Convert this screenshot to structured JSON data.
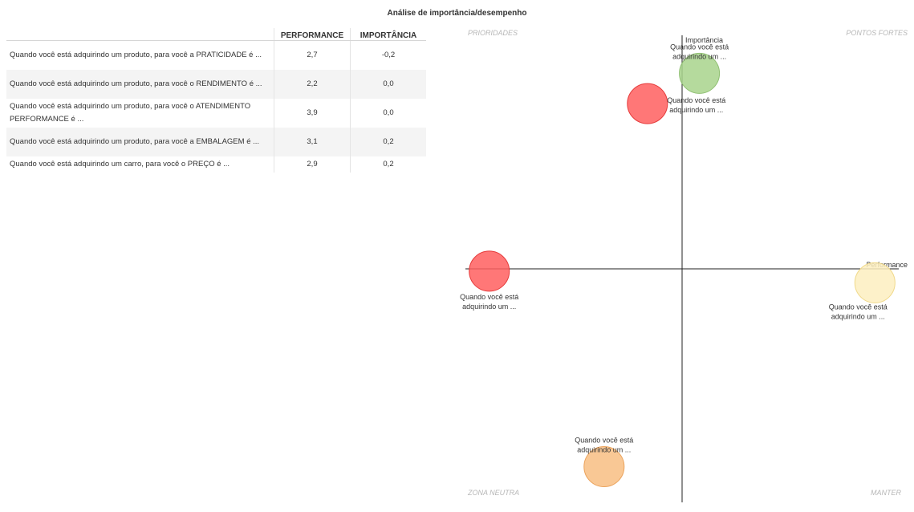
{
  "title": "Análise de importância/desempenho",
  "table": {
    "headers": {
      "label": "",
      "performance": "PERFORMANCE",
      "importance": "IMPORTÂNCIA"
    },
    "rows": [
      {
        "label": "Quando você está adquirindo um produto, para você a PRATICIDADE é ...",
        "performance": "2,7",
        "importance": "-0,2"
      },
      {
        "label": "Quando você está adquirindo um produto, para você o RENDIMENTO é ...",
        "performance": "2,2",
        "importance": "0,0"
      },
      {
        "label": "Quando você está adquirindo um produto, para você o ATENDIMENTO PERFORMANCE é ...",
        "performance": "3,9",
        "importance": "0,0"
      },
      {
        "label": "Quando você está adquirindo um produto, para você a EMBALAGEM é ...",
        "performance": "3,1",
        "importance": "0,2"
      },
      {
        "label": "Quando você está adquirindo um carro, para você o PREÇO é ...",
        "performance": "2,9",
        "importance": "0,2"
      }
    ]
  },
  "quadrants": {
    "top_left": "PRIORIDADES",
    "top_right": "PONTOS FORTES",
    "bottom_left": "ZONA NEUTRA",
    "bottom_right": "MANTER"
  },
  "colors": {
    "red": "#ff5f5f",
    "green": "#a8d48c",
    "yellow": "#fdefbf",
    "orange": "#f8be82"
  },
  "chart_data": {
    "type": "scatter",
    "title": "Análise de importância/desempenho",
    "xlabel": "Performance",
    "ylabel": "Importância",
    "xlim": [
      -1.0,
      1.0
    ],
    "ylim": [
      -1.0,
      1.0
    ],
    "grid": false,
    "series": [
      {
        "name": "Quando você está adquirindo um ...",
        "x": 0.08,
        "y": 0.84,
        "color": "green",
        "label_position": "above"
      },
      {
        "name": "Quando você está adquirindo um ...",
        "x": -0.16,
        "y": 0.71,
        "color": "red",
        "label_position": "below-right"
      },
      {
        "name": "Quando você está adquirindo um ...",
        "x": -0.89,
        "y": -0.01,
        "color": "red",
        "label_position": "below"
      },
      {
        "name": "Quando você está adquirindo um ...",
        "x": 0.89,
        "y": -0.06,
        "color": "yellow",
        "label_position": "below-left"
      },
      {
        "name": "Quando você está adquirindo um ...",
        "x": -0.36,
        "y": -0.85,
        "color": "orange",
        "label_position": "above"
      }
    ]
  }
}
